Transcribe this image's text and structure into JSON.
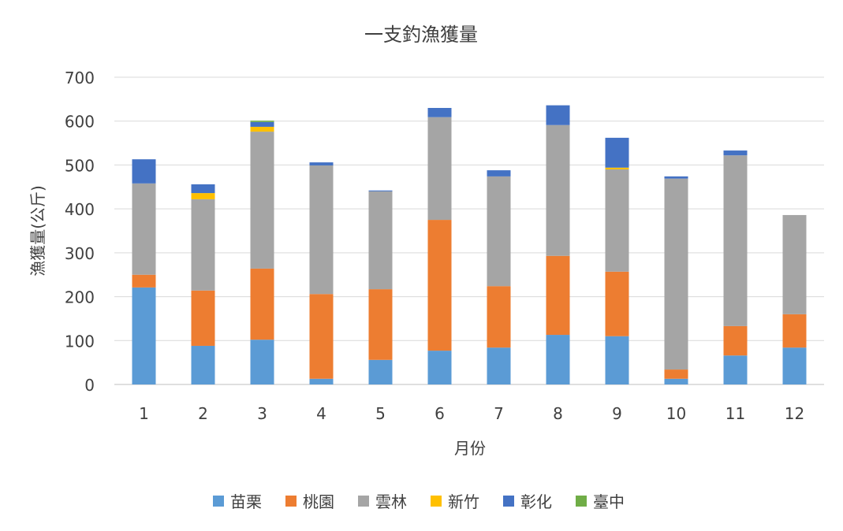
{
  "chart_data": {
    "type": "bar",
    "stacked": true,
    "title": "一支釣漁獲量",
    "xlabel": "月份",
    "ylabel": "漁獲量(公斤)",
    "ylim": [
      0,
      700
    ],
    "yticks": [
      0,
      100,
      200,
      300,
      400,
      500,
      600,
      700
    ],
    "grid": true,
    "legend_position": "bottom",
    "categories": [
      "1",
      "2",
      "3",
      "4",
      "5",
      "6",
      "7",
      "8",
      "9",
      "10",
      "11",
      "12"
    ],
    "series": [
      {
        "name": "苗栗",
        "color": "#5B9BD5",
        "values": [
          221,
          88,
          102,
          13,
          56,
          77,
          84,
          113,
          110,
          13,
          66,
          84
        ]
      },
      {
        "name": "桃園",
        "color": "#ED7D31",
        "values": [
          29,
          126,
          162,
          193,
          161,
          298,
          140,
          180,
          147,
          21,
          67,
          76
        ]
      },
      {
        "name": "雲林",
        "color": "#A5A5A5",
        "values": [
          208,
          208,
          312,
          293,
          223,
          234,
          250,
          298,
          233,
          435,
          389,
          226
        ]
      },
      {
        "name": "新竹",
        "color": "#FFC000",
        "values": [
          0,
          14,
          11,
          0,
          0,
          0,
          0,
          0,
          4,
          0,
          0,
          0
        ]
      },
      {
        "name": "彰化",
        "color": "#4472C4",
        "values": [
          55,
          20,
          11,
          7,
          2,
          21,
          14,
          45,
          68,
          5,
          11,
          0
        ]
      },
      {
        "name": "臺中",
        "color": "#70AD47",
        "values": [
          0,
          0,
          3,
          0,
          0,
          0,
          0,
          0,
          0,
          0,
          0,
          0
        ]
      }
    ]
  }
}
